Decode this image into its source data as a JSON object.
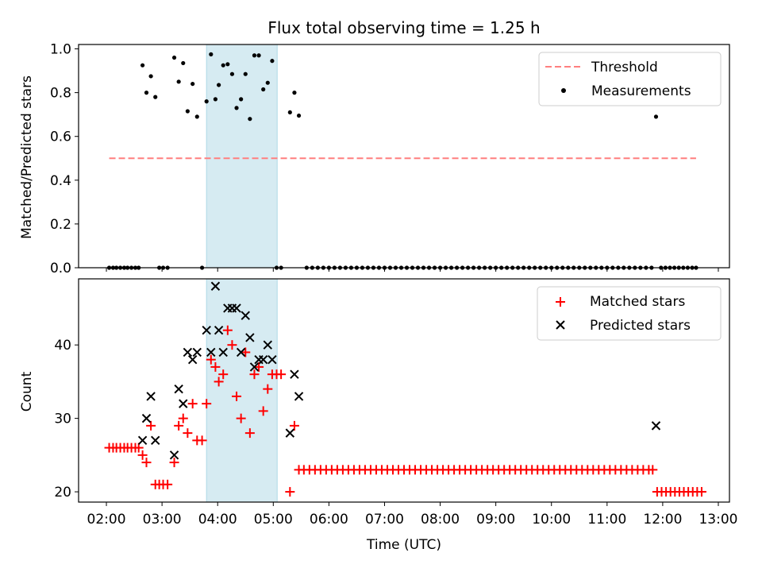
{
  "title": "Flux total observing time = 1.25 h",
  "chart_data": [
    {
      "type": "scatter",
      "ylabel": "Matched/Predicted stars",
      "ylim": [
        0,
        1.02
      ],
      "xlim": [
        1.5,
        13.2
      ],
      "yticks": [
        0.0,
        0.2,
        0.4,
        0.6,
        0.8,
        1.0
      ],
      "yticklabels": [
        "0.0",
        "0.2",
        "0.4",
        "0.6",
        "0.8",
        "1.0"
      ],
      "highlight_span": [
        3.8,
        5.07
      ],
      "threshold": {
        "name": "Threshold",
        "value": 0.5,
        "x_range": [
          2.05,
          12.6
        ],
        "color": "#ff7f7f"
      },
      "series": [
        {
          "name": "Measurements",
          "color": "#000000",
          "points": [
            [
              2.05,
              0
            ],
            [
              2.12,
              0
            ],
            [
              2.18,
              0
            ],
            [
              2.25,
              0
            ],
            [
              2.32,
              0
            ],
            [
              2.38,
              0
            ],
            [
              2.45,
              0
            ],
            [
              2.52,
              0
            ],
            [
              2.58,
              0
            ],
            [
              2.65,
              0.925
            ],
            [
              2.72,
              0.8
            ],
            [
              2.8,
              0.875
            ],
            [
              2.88,
              0.78
            ],
            [
              2.95,
              0
            ],
            [
              3.02,
              0
            ],
            [
              3.1,
              0
            ],
            [
              3.22,
              0.96
            ],
            [
              3.3,
              0.85
            ],
            [
              3.38,
              0.935
            ],
            [
              3.46,
              0.715
            ],
            [
              3.55,
              0.84
            ],
            [
              3.63,
              0.69
            ],
            [
              3.72,
              0
            ],
            [
              3.8,
              0.76
            ],
            [
              3.88,
              0.975
            ],
            [
              3.96,
              0.77
            ],
            [
              4.02,
              0.835
            ],
            [
              4.1,
              0.925
            ],
            [
              4.18,
              0.93
            ],
            [
              4.26,
              0.885
            ],
            [
              4.34,
              0.73
            ],
            [
              4.42,
              0.77
            ],
            [
              4.5,
              0.885
            ],
            [
              4.58,
              0.68
            ],
            [
              4.66,
              0.97
            ],
            [
              4.74,
              0.97
            ],
            [
              4.82,
              0.815
            ],
            [
              4.9,
              0.845
            ],
            [
              4.98,
              0.945
            ],
            [
              5.06,
              0
            ],
            [
              5.14,
              0
            ],
            [
              5.3,
              0.71
            ],
            [
              5.38,
              0.8
            ],
            [
              5.46,
              0.695
            ],
            [
              5.6,
              0
            ],
            [
              5.7,
              0
            ],
            [
              5.8,
              0
            ],
            [
              5.9,
              0
            ],
            [
              6.0,
              0
            ],
            [
              6.1,
              0
            ],
            [
              6.2,
              0
            ],
            [
              6.3,
              0
            ],
            [
              6.4,
              0
            ],
            [
              6.5,
              0
            ],
            [
              6.6,
              0
            ],
            [
              6.7,
              0
            ],
            [
              6.8,
              0
            ],
            [
              6.9,
              0
            ],
            [
              7.0,
              0
            ],
            [
              7.1,
              0
            ],
            [
              7.2,
              0
            ],
            [
              7.3,
              0
            ],
            [
              7.4,
              0
            ],
            [
              7.5,
              0
            ],
            [
              7.6,
              0
            ],
            [
              7.7,
              0
            ],
            [
              7.8,
              0
            ],
            [
              7.9,
              0
            ],
            [
              8.0,
              0
            ],
            [
              8.1,
              0
            ],
            [
              8.2,
              0
            ],
            [
              8.3,
              0
            ],
            [
              8.4,
              0
            ],
            [
              8.5,
              0
            ],
            [
              8.6,
              0
            ],
            [
              8.7,
              0
            ],
            [
              8.8,
              0
            ],
            [
              8.9,
              0
            ],
            [
              9.0,
              0
            ],
            [
              9.1,
              0
            ],
            [
              9.2,
              0
            ],
            [
              9.3,
              0
            ],
            [
              9.4,
              0
            ],
            [
              9.5,
              0
            ],
            [
              9.6,
              0
            ],
            [
              9.7,
              0
            ],
            [
              9.8,
              0
            ],
            [
              9.9,
              0
            ],
            [
              10.0,
              0
            ],
            [
              10.1,
              0
            ],
            [
              10.2,
              0
            ],
            [
              10.3,
              0
            ],
            [
              10.4,
              0
            ],
            [
              10.5,
              0
            ],
            [
              10.6,
              0
            ],
            [
              10.7,
              0
            ],
            [
              10.8,
              0
            ],
            [
              10.9,
              0
            ],
            [
              11.0,
              0
            ],
            [
              11.1,
              0
            ],
            [
              11.2,
              0
            ],
            [
              11.3,
              0
            ],
            [
              11.4,
              0
            ],
            [
              11.5,
              0
            ],
            [
              11.6,
              0
            ],
            [
              11.7,
              0
            ],
            [
              11.8,
              0
            ],
            [
              11.88,
              0.69
            ],
            [
              11.97,
              0
            ],
            [
              12.05,
              0
            ],
            [
              12.13,
              0
            ],
            [
              12.21,
              0
            ],
            [
              12.29,
              0
            ],
            [
              12.37,
              0
            ],
            [
              12.45,
              0
            ],
            [
              12.53,
              0
            ],
            [
              12.6,
              0
            ]
          ]
        }
      ],
      "legend": {
        "position": "top-right",
        "entries": [
          "Threshold",
          "Measurements"
        ]
      }
    },
    {
      "type": "scatter",
      "ylabel": "Count",
      "xlabel": "Time (UTC)",
      "ylim": [
        18.6,
        49.0
      ],
      "xlim": [
        1.5,
        13.2
      ],
      "yticks": [
        20,
        30,
        40
      ],
      "yticklabels": [
        "20",
        "30",
        "40"
      ],
      "xticks": [
        2,
        3,
        4,
        5,
        6,
        7,
        8,
        9,
        10,
        11,
        12,
        13
      ],
      "xticklabels": [
        "02:00",
        "03:00",
        "04:00",
        "05:00",
        "06:00",
        "07:00",
        "08:00",
        "09:00",
        "10:00",
        "11:00",
        "12:00",
        "13:00"
      ],
      "highlight_span": [
        3.8,
        5.07
      ],
      "series": [
        {
          "name": "Matched stars",
          "marker": "plus",
          "color": "#ff0000",
          "points": [
            [
              2.05,
              26
            ],
            [
              2.12,
              26
            ],
            [
              2.18,
              26
            ],
            [
              2.25,
              26
            ],
            [
              2.32,
              26
            ],
            [
              2.38,
              26
            ],
            [
              2.45,
              26
            ],
            [
              2.52,
              26
            ],
            [
              2.58,
              26
            ],
            [
              2.65,
              25
            ],
            [
              2.72,
              24
            ],
            [
              2.8,
              29
            ],
            [
              2.88,
              21
            ],
            [
              2.95,
              21
            ],
            [
              3.02,
              21
            ],
            [
              3.1,
              21
            ],
            [
              3.22,
              24
            ],
            [
              3.3,
              29
            ],
            [
              3.38,
              30
            ],
            [
              3.46,
              28
            ],
            [
              3.55,
              32
            ],
            [
              3.63,
              27
            ],
            [
              3.72,
              27
            ],
            [
              3.8,
              32
            ],
            [
              3.88,
              38
            ],
            [
              3.96,
              37
            ],
            [
              4.02,
              35
            ],
            [
              4.1,
              36
            ],
            [
              4.18,
              42
            ],
            [
              4.26,
              40
            ],
            [
              4.34,
              33
            ],
            [
              4.42,
              30
            ],
            [
              4.5,
              39
            ],
            [
              4.58,
              28
            ],
            [
              4.66,
              36
            ],
            [
              4.74,
              37
            ],
            [
              4.82,
              31
            ],
            [
              4.9,
              34
            ],
            [
              4.98,
              36
            ],
            [
              5.06,
              36
            ],
            [
              5.14,
              36
            ],
            [
              5.3,
              20
            ],
            [
              5.38,
              29
            ],
            [
              5.46,
              23
            ],
            [
              5.55,
              23
            ],
            [
              5.65,
              23
            ],
            [
              5.75,
              23
            ],
            [
              5.85,
              23
            ],
            [
              5.95,
              23
            ],
            [
              6.05,
              23
            ],
            [
              6.15,
              23
            ],
            [
              6.25,
              23
            ],
            [
              6.35,
              23
            ],
            [
              6.45,
              23
            ],
            [
              6.55,
              23
            ],
            [
              6.65,
              23
            ],
            [
              6.75,
              23
            ],
            [
              6.85,
              23
            ],
            [
              6.95,
              23
            ],
            [
              7.05,
              23
            ],
            [
              7.15,
              23
            ],
            [
              7.25,
              23
            ],
            [
              7.35,
              23
            ],
            [
              7.45,
              23
            ],
            [
              7.55,
              23
            ],
            [
              7.65,
              23
            ],
            [
              7.75,
              23
            ],
            [
              7.85,
              23
            ],
            [
              7.95,
              23
            ],
            [
              8.05,
              23
            ],
            [
              8.15,
              23
            ],
            [
              8.25,
              23
            ],
            [
              8.35,
              23
            ],
            [
              8.45,
              23
            ],
            [
              8.55,
              23
            ],
            [
              8.65,
              23
            ],
            [
              8.75,
              23
            ],
            [
              8.85,
              23
            ],
            [
              8.95,
              23
            ],
            [
              9.05,
              23
            ],
            [
              9.15,
              23
            ],
            [
              9.25,
              23
            ],
            [
              9.35,
              23
            ],
            [
              9.45,
              23
            ],
            [
              9.55,
              23
            ],
            [
              9.65,
              23
            ],
            [
              9.75,
              23
            ],
            [
              9.85,
              23
            ],
            [
              9.95,
              23
            ],
            [
              10.05,
              23
            ],
            [
              10.15,
              23
            ],
            [
              10.25,
              23
            ],
            [
              10.35,
              23
            ],
            [
              10.45,
              23
            ],
            [
              10.55,
              23
            ],
            [
              10.65,
              23
            ],
            [
              10.75,
              23
            ],
            [
              10.85,
              23
            ],
            [
              10.95,
              23
            ],
            [
              11.05,
              23
            ],
            [
              11.15,
              23
            ],
            [
              11.25,
              23
            ],
            [
              11.35,
              23
            ],
            [
              11.45,
              23
            ],
            [
              11.55,
              23
            ],
            [
              11.65,
              23
            ],
            [
              11.75,
              23
            ],
            [
              11.82,
              23
            ],
            [
              11.9,
              20
            ],
            [
              11.98,
              20
            ],
            [
              12.06,
              20
            ],
            [
              12.14,
              20
            ],
            [
              12.22,
              20
            ],
            [
              12.3,
              20
            ],
            [
              12.38,
              20
            ],
            [
              12.46,
              20
            ],
            [
              12.54,
              20
            ],
            [
              12.62,
              20
            ],
            [
              12.7,
              20
            ]
          ]
        },
        {
          "name": "Predicted stars",
          "marker": "x",
          "color": "#000000",
          "points": [
            [
              2.65,
              27
            ],
            [
              2.72,
              30
            ],
            [
              2.8,
              33
            ],
            [
              2.88,
              27
            ],
            [
              3.22,
              25
            ],
            [
              3.3,
              34
            ],
            [
              3.38,
              32
            ],
            [
              3.46,
              39
            ],
            [
              3.55,
              38
            ],
            [
              3.63,
              39
            ],
            [
              3.8,
              42
            ],
            [
              3.88,
              39
            ],
            [
              3.96,
              48
            ],
            [
              4.02,
              42
            ],
            [
              4.1,
              39
            ],
            [
              4.18,
              45
            ],
            [
              4.26,
              45
            ],
            [
              4.34,
              45
            ],
            [
              4.42,
              39
            ],
            [
              4.5,
              44
            ],
            [
              4.58,
              41
            ],
            [
              4.66,
              37
            ],
            [
              4.74,
              38
            ],
            [
              4.82,
              38
            ],
            [
              4.9,
              40
            ],
            [
              4.98,
              38
            ],
            [
              5.3,
              28
            ],
            [
              5.38,
              36
            ],
            [
              5.46,
              33
            ],
            [
              11.88,
              29
            ]
          ]
        }
      ],
      "legend": {
        "position": "top-right",
        "entries": [
          "Matched stars",
          "Predicted stars"
        ]
      }
    }
  ]
}
